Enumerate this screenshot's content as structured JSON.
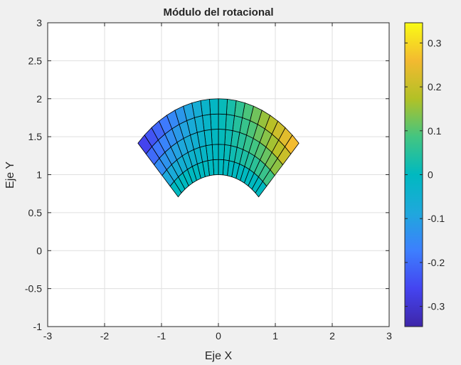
{
  "chart_data": {
    "type": "heatmap",
    "title": "Módulo del rotacional",
    "xlabel": "Eje X",
    "ylabel": "Eje Y",
    "xlim": [
      -3,
      3
    ],
    "ylim": [
      -1,
      3
    ],
    "xticks": [
      -3,
      -2,
      -1,
      0,
      1,
      2,
      3
    ],
    "xtick_labels": [
      "-3",
      "-2",
      "-1",
      "0",
      "1",
      "2",
      "3"
    ],
    "yticks": [
      -1,
      -0.5,
      0,
      0.5,
      1,
      1.5,
      2,
      2.5,
      3
    ],
    "ytick_labels": [
      "-1",
      "-0.5",
      "0",
      "0.5",
      "1",
      "1.5",
      "2",
      "2.5",
      "3"
    ],
    "grid": true,
    "colormap": "parula",
    "color_range": [
      -0.346,
      0.346
    ],
    "colorbar_ticks": [
      -0.3,
      -0.2,
      -0.1,
      0,
      0.1,
      0.2,
      0.3
    ],
    "colorbar_tick_labels": [
      "-0.3",
      "-0.2",
      "-0.1",
      "0",
      "0.1",
      "0.2",
      "0.3"
    ],
    "surface": {
      "shape": "annular sector",
      "r_range": [
        1,
        2
      ],
      "theta_range_deg": [
        45,
        135
      ],
      "r_divisions": 5,
      "theta_divisions": 20,
      "rows": [
        [
          0.0,
          0.0,
          0.0,
          0.0,
          0.0,
          0.0,
          0.0,
          0.0,
          0.0,
          0.0,
          0.0,
          0.0,
          0.0,
          0.0,
          0.0,
          0.0,
          0.0,
          0.0,
          0.0,
          0.0
        ],
        [
          0.082,
          0.073,
          0.065,
          0.056,
          0.047,
          0.038,
          0.029,
          0.019,
          0.01,
          0.003,
          -0.003,
          -0.01,
          -0.019,
          -0.029,
          -0.038,
          -0.047,
          -0.056,
          -0.065,
          -0.073,
          -0.082
        ],
        [
          0.145,
          0.131,
          0.116,
          0.1,
          0.084,
          0.068,
          0.051,
          0.034,
          0.017,
          0.006,
          -0.006,
          -0.017,
          -0.034,
          -0.051,
          -0.068,
          -0.084,
          -0.1,
          -0.116,
          -0.131,
          -0.145
        ],
        [
          0.203,
          0.183,
          0.162,
          0.14,
          0.118,
          0.095,
          0.071,
          0.048,
          0.024,
          0.008,
          -0.008,
          -0.024,
          -0.048,
          -0.071,
          -0.095,
          -0.118,
          -0.14,
          -0.162,
          -0.183,
          -0.203
        ],
        [
          0.262,
          0.236,
          0.209,
          0.181,
          0.152,
          0.122,
          0.092,
          0.062,
          0.031,
          0.01,
          -0.01,
          -0.031,
          -0.062,
          -0.092,
          -0.122,
          -0.152,
          -0.181,
          -0.209,
          -0.236,
          -0.262
        ]
      ]
    }
  }
}
